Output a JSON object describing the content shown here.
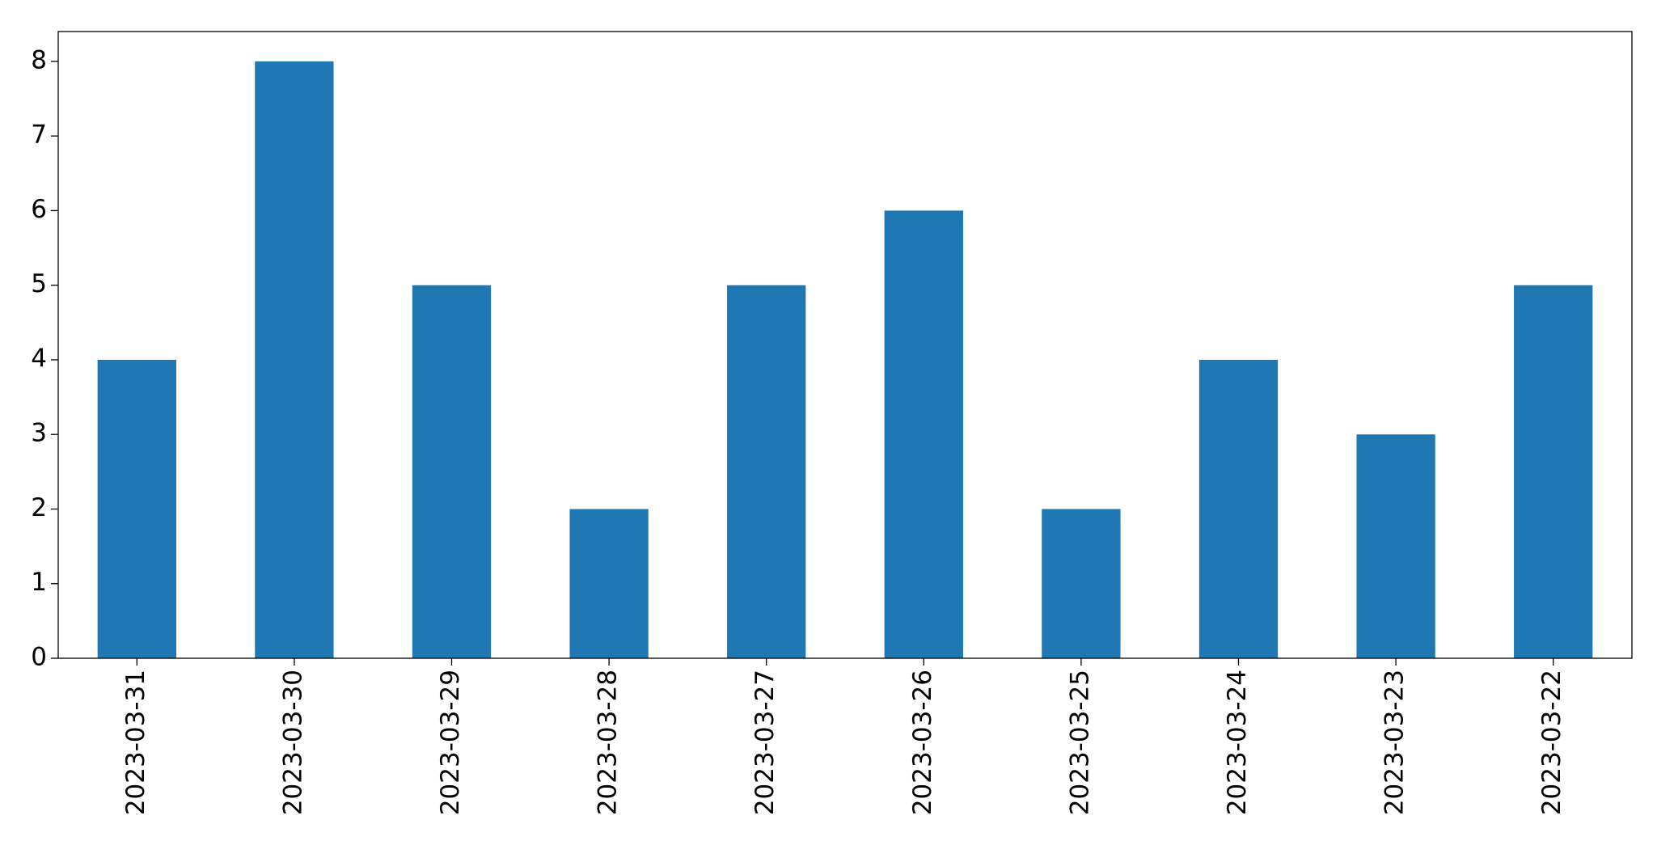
{
  "chart_data": {
    "type": "bar",
    "categories": [
      "2023-03-31",
      "2023-03-30",
      "2023-03-29",
      "2023-03-28",
      "2023-03-27",
      "2023-03-26",
      "2023-03-25",
      "2023-03-24",
      "2023-03-23",
      "2023-03-22"
    ],
    "values": [
      4,
      8,
      5,
      2,
      5,
      6,
      2,
      4,
      3,
      5
    ],
    "color": "#1f77b4",
    "ylim": [
      0,
      8.4
    ],
    "yticks": [
      0,
      1,
      2,
      3,
      4,
      5,
      6,
      7,
      8
    ],
    "grid": false
  }
}
